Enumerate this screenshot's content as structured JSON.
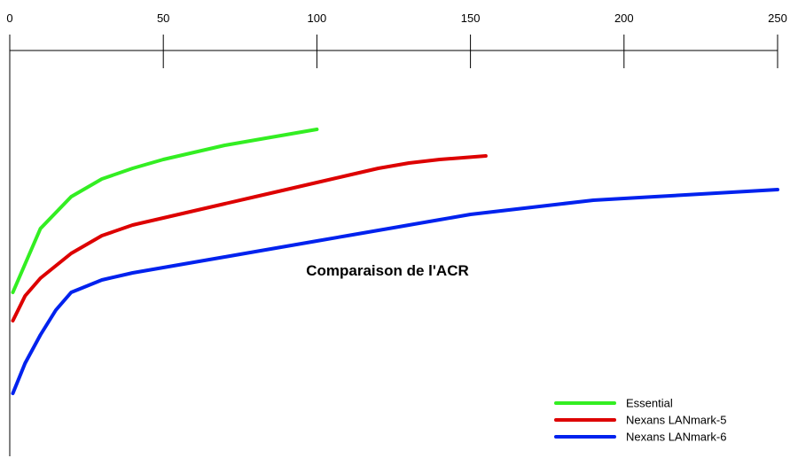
{
  "chart_data": {
    "type": "line",
    "title": "Comparaison de l'ACR",
    "xlabel": "",
    "ylabel": "",
    "x_axis_position": "top",
    "xlim": [
      0,
      250
    ],
    "x_ticks": [
      0,
      50,
      100,
      150,
      200,
      250
    ],
    "x_tick_labels": [
      "0",
      "50",
      "100",
      "150",
      "200",
      "250"
    ],
    "ylim": [
      0,
      100
    ],
    "y_axis_labels": "none",
    "grid": false,
    "legend_position": "bottom-right",
    "series": [
      {
        "name": "Essential",
        "color": "#33ee22",
        "points": [
          [
            1,
            35
          ],
          [
            5,
            43
          ],
          [
            10,
            53
          ],
          [
            20,
            62
          ],
          [
            30,
            67
          ],
          [
            40,
            70
          ],
          [
            50,
            72.5
          ],
          [
            60,
            74.5
          ],
          [
            70,
            76.5
          ],
          [
            80,
            78
          ],
          [
            90,
            79.5
          ],
          [
            100,
            81
          ]
        ]
      },
      {
        "name": "Nexans LANmark-5",
        "color": "#dd0000",
        "points": [
          [
            1,
            27
          ],
          [
            5,
            34
          ],
          [
            10,
            39
          ],
          [
            20,
            46
          ],
          [
            30,
            51
          ],
          [
            40,
            54
          ],
          [
            50,
            56
          ],
          [
            60,
            58
          ],
          [
            70,
            60
          ],
          [
            80,
            62
          ],
          [
            90,
            64
          ],
          [
            100,
            66
          ],
          [
            110,
            68
          ],
          [
            120,
            70
          ],
          [
            130,
            71.5
          ],
          [
            140,
            72.5
          ],
          [
            155,
            73.5
          ]
        ]
      },
      {
        "name": "Nexans LANmark-6",
        "color": "#0022ee",
        "points": [
          [
            1,
            6.5
          ],
          [
            5,
            15
          ],
          [
            10,
            23
          ],
          [
            15,
            30
          ],
          [
            20,
            35
          ],
          [
            30,
            38.5
          ],
          [
            40,
            40.5
          ],
          [
            50,
            42
          ],
          [
            60,
            43.5
          ],
          [
            70,
            45
          ],
          [
            80,
            46.5
          ],
          [
            90,
            48
          ],
          [
            100,
            49.5
          ],
          [
            110,
            51
          ],
          [
            120,
            52.5
          ],
          [
            130,
            54
          ],
          [
            140,
            55.5
          ],
          [
            150,
            57
          ],
          [
            160,
            58
          ],
          [
            170,
            59
          ],
          [
            180,
            60
          ],
          [
            190,
            61
          ],
          [
            200,
            61.5
          ],
          [
            210,
            62
          ],
          [
            220,
            62.5
          ],
          [
            230,
            63
          ],
          [
            240,
            63.5
          ],
          [
            250,
            64
          ]
        ]
      }
    ]
  }
}
